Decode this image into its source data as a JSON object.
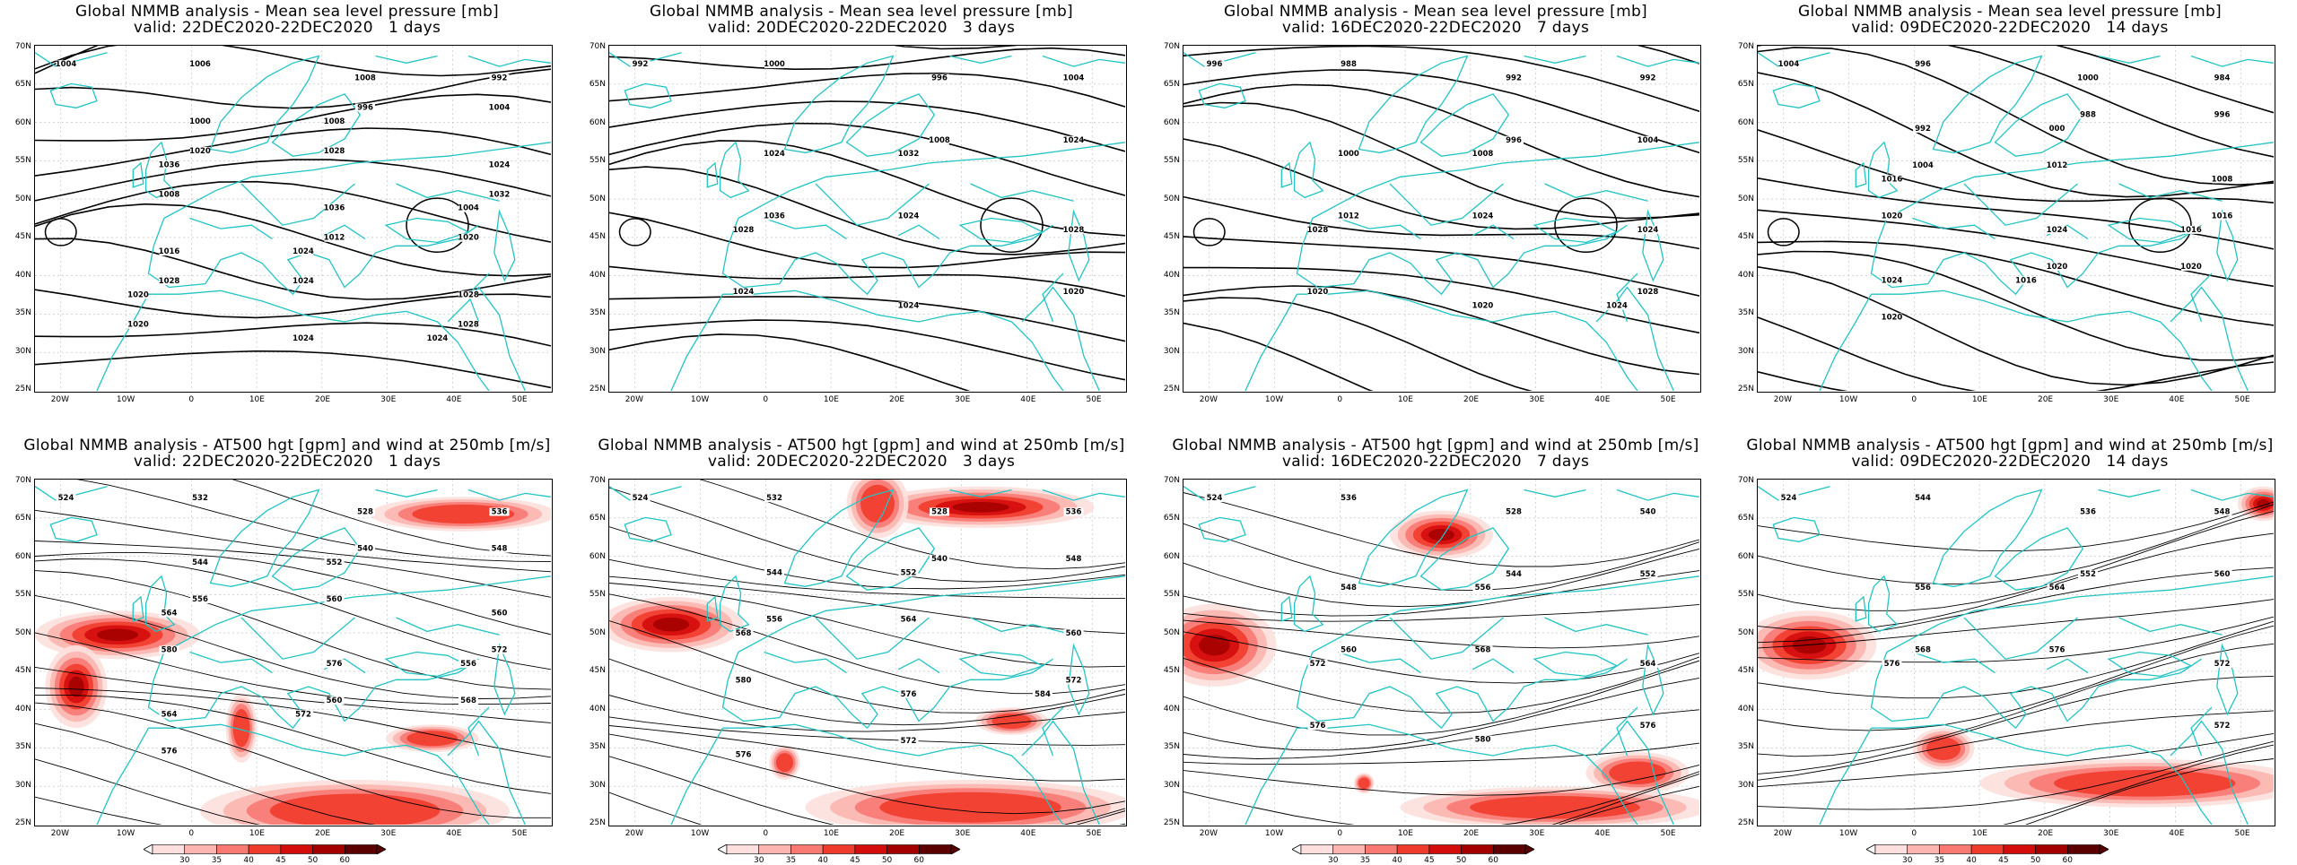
{
  "panels_top": [
    {
      "title1": "Global NMMB analysis - Mean sea level pressure [mb]",
      "title2": "valid: 22DEC2020-22DEC2020   1 days",
      "labels": [
        "1004",
        "1008",
        "1006",
        "992",
        "996",
        "1000",
        "1004",
        "1008",
        "1020",
        "1024",
        "1028",
        "1036",
        "1032",
        "1036",
        "1008",
        "1004",
        "1012",
        "1016",
        "1020",
        "1024",
        "1028",
        "1028",
        "1024",
        "1020",
        "1028",
        "1024",
        "1020",
        "1024"
      ]
    },
    {
      "title1": "Global NMMB analysis - Mean sea level pressure [mb]",
      "title2": "valid: 20DEC2020-22DEC2020   3 days",
      "labels": [
        "992",
        "996",
        "1000",
        "1004",
        "1008",
        "1024",
        "1024",
        "1032",
        "1036",
        "1028",
        "1024",
        "1028",
        "1020",
        "1024",
        "1024"
      ]
    },
    {
      "title1": "Global NMMB analysis - Mean sea level pressure [mb]",
      "title2": "valid: 16DEC2020-22DEC2020   7 days",
      "labels": [
        "996",
        "992",
        "988",
        "992",
        "996",
        "1000",
        "1004",
        "1008",
        "1012",
        "1024",
        "1024",
        "1028",
        "1028",
        "1020",
        "1020",
        "1024"
      ]
    },
    {
      "title1": "Global NMMB analysis - Mean sea level pressure [mb]",
      "title2": "valid: 09DEC2020-22DEC2020   14 days",
      "labels": [
        "1004",
        "1000",
        "996",
        "984",
        "988",
        "992",
        "996",
        "000",
        "1004",
        "1008",
        "1012",
        "1016",
        "1016",
        "1024",
        "1020",
        "1016",
        "1020",
        "1024",
        "1020",
        "1016",
        "1020"
      ]
    }
  ],
  "panels_bottom": [
    {
      "title1": "Global NMMB analysis - AT500 hgt [gpm] and wind at 250mb [m/s]",
      "title2": "valid: 22DEC2020-22DEC2020   1 days",
      "labels": [
        "524",
        "528",
        "532",
        "536",
        "540",
        "544",
        "548",
        "552",
        "556",
        "560",
        "560",
        "564",
        "572",
        "576",
        "580",
        "556",
        "560",
        "564",
        "568",
        "572",
        "576"
      ]
    },
    {
      "title1": "Global NMMB analysis - AT500 hgt [gpm] and wind at 250mb [m/s]",
      "title2": "valid: 20DEC2020-22DEC2020   3 days",
      "labels": [
        "524",
        "528",
        "532",
        "536",
        "540",
        "544",
        "548",
        "552",
        "556",
        "560",
        "564",
        "568",
        "572",
        "576",
        "580",
        "584",
        "572",
        "576"
      ]
    },
    {
      "title1": "Global NMMB analysis - AT500 hgt [gpm] and wind at 250mb [m/s]",
      "title2": "valid: 16DEC2020-22DEC2020   7 days",
      "labels": [
        "524",
        "528",
        "536",
        "540",
        "544",
        "548",
        "552",
        "556",
        "560",
        "564",
        "568",
        "572",
        "576",
        "580",
        "576"
      ]
    },
    {
      "title1": "Global NMMB analysis - AT500 hgt [gpm] and wind at 250mb [m/s]",
      "title2": "valid: 09DEC2020-22DEC2020   14 days",
      "labels": [
        "524",
        "536",
        "544",
        "548",
        "552",
        "556",
        "560",
        "564",
        "568",
        "572",
        "576",
        "576",
        "572"
      ]
    }
  ],
  "lat_ticks": [
    "70N",
    "65N",
    "60N",
    "55N",
    "50N",
    "45N",
    "40N",
    "35N",
    "30N",
    "25N"
  ],
  "lon_ticks": [
    "20W",
    "10W",
    "0",
    "10E",
    "20E",
    "30E",
    "40E",
    "50E"
  ],
  "colorbar": {
    "labels": [
      "30",
      "35",
      "40",
      "45",
      "50",
      "60"
    ],
    "colors": [
      "#fde0dd",
      "#fcb5b0",
      "#f87a73",
      "#ef3b2c",
      "#d40c0c",
      "#a50000",
      "#5a0000"
    ]
  },
  "colors": {
    "coast": "#22c4c4",
    "contour": "#000000",
    "jet": "#e00000"
  }
}
